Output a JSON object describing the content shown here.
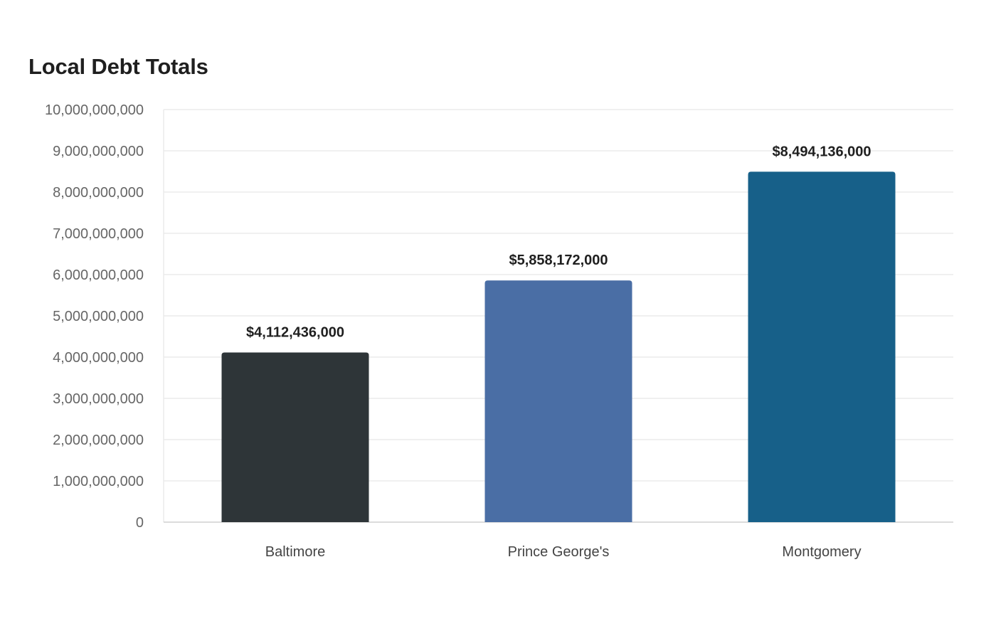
{
  "chart_data": {
    "type": "bar",
    "title": "Local Debt Totals",
    "xlabel": "",
    "ylabel": "",
    "categories": [
      "Baltimore",
      "Prince George's",
      "Montgomery"
    ],
    "values": [
      4112436000,
      5858172000,
      8494136000
    ],
    "data_labels": [
      "$4,112,436,000",
      "$5,858,172,000",
      "$8,494,136,000"
    ],
    "colors": [
      "#2e3538",
      "#4a6ea5",
      "#176089"
    ],
    "ylim": [
      0,
      10000000000
    ],
    "yticks": [
      0,
      1000000000,
      2000000000,
      3000000000,
      4000000000,
      5000000000,
      6000000000,
      7000000000,
      8000000000,
      9000000000,
      10000000000
    ],
    "ytick_labels": [
      "0",
      "1,000,000,000",
      "2,000,000,000",
      "3,000,000,000",
      "4,000,000,000",
      "5,000,000,000",
      "6,000,000,000",
      "7,000,000,000",
      "8,000,000,000",
      "9,000,000,000",
      "10,000,000,000"
    ],
    "grid": true,
    "legend": "none"
  }
}
